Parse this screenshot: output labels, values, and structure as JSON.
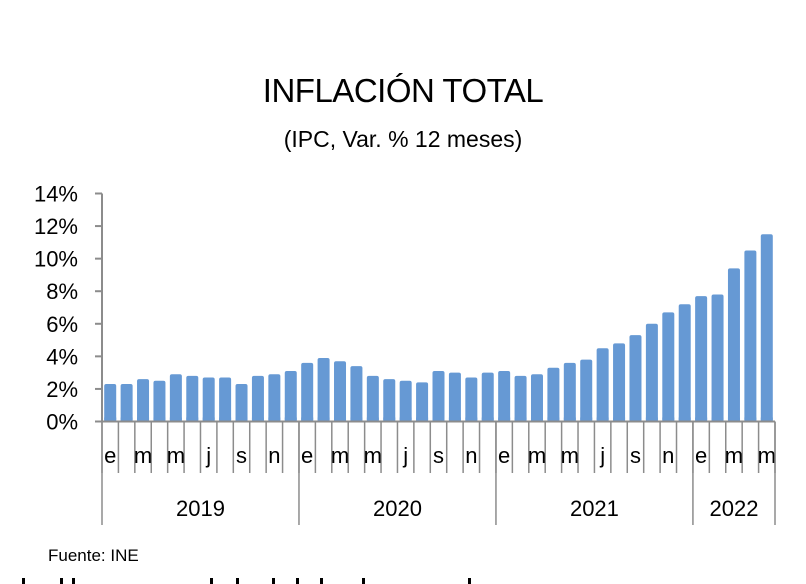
{
  "title": "INFLACIÓN TOTAL",
  "subtitle": "(IPC, Var. % 12 meses)",
  "source": "Fuente: INE",
  "colors": {
    "bar": "#6699D4",
    "axis": "#8c8c8c",
    "text": "#000000"
  },
  "chart_data": {
    "type": "bar",
    "title": "INFLACIÓN TOTAL",
    "subtitle": "(IPC, Var. % 12 meses)",
    "xlabel": "",
    "ylabel": "",
    "ylim": [
      0,
      14
    ],
    "yticks": [
      0,
      2,
      4,
      6,
      8,
      10,
      12,
      14
    ],
    "ytick_labels": [
      "0%",
      "2%",
      "4%",
      "6%",
      "8%",
      "10%",
      "12%",
      "14%"
    ],
    "grid": false,
    "legend": "none",
    "categories": [
      "ene 2019",
      "feb 2019",
      "mar 2019",
      "abr 2019",
      "may 2019",
      "jun 2019",
      "jul 2019",
      "ago 2019",
      "sep 2019",
      "oct 2019",
      "nov 2019",
      "dic 2019",
      "ene 2020",
      "feb 2020",
      "mar 2020",
      "abr 2020",
      "may 2020",
      "jun 2020",
      "jul 2020",
      "ago 2020",
      "sep 2020",
      "oct 2020",
      "nov 2020",
      "dic 2020",
      "ene 2021",
      "feb 2021",
      "mar 2021",
      "abr 2021",
      "may 2021",
      "jun 2021",
      "jul 2021",
      "ago 2021",
      "sep 2021",
      "oct 2021",
      "nov 2021",
      "dic 2021",
      "ene 2022",
      "feb 2022",
      "mar 2022",
      "abr 2022",
      "may 2022"
    ],
    "month_labels": [
      "e",
      "",
      "m",
      "",
      "m",
      "",
      "j",
      "",
      "s",
      "",
      "n",
      "",
      "e",
      "",
      "m",
      "",
      "m",
      "",
      "j",
      "",
      "s",
      "",
      "n",
      "",
      "e",
      "",
      "m",
      "",
      "m",
      "",
      "j",
      "",
      "s",
      "",
      "n",
      "",
      "e",
      "",
      "m",
      "",
      "m"
    ],
    "years": [
      {
        "label": "2019",
        "months": 12
      },
      {
        "label": "2020",
        "months": 12
      },
      {
        "label": "2021",
        "months": 12
      },
      {
        "label": "2022",
        "months": 5
      }
    ],
    "series": [
      {
        "name": "IPC Var. % 12 meses",
        "values": [
          2.3,
          2.3,
          2.6,
          2.5,
          2.9,
          2.8,
          2.7,
          2.7,
          2.3,
          2.8,
          2.9,
          3.1,
          3.6,
          3.9,
          3.7,
          3.4,
          2.8,
          2.6,
          2.5,
          2.4,
          3.1,
          3.0,
          2.7,
          3.0,
          3.1,
          2.8,
          2.9,
          3.3,
          3.6,
          3.8,
          4.5,
          4.8,
          5.3,
          6.0,
          6.7,
          7.2,
          7.7,
          7.8,
          9.4,
          10.5,
          11.5
        ]
      }
    ]
  }
}
